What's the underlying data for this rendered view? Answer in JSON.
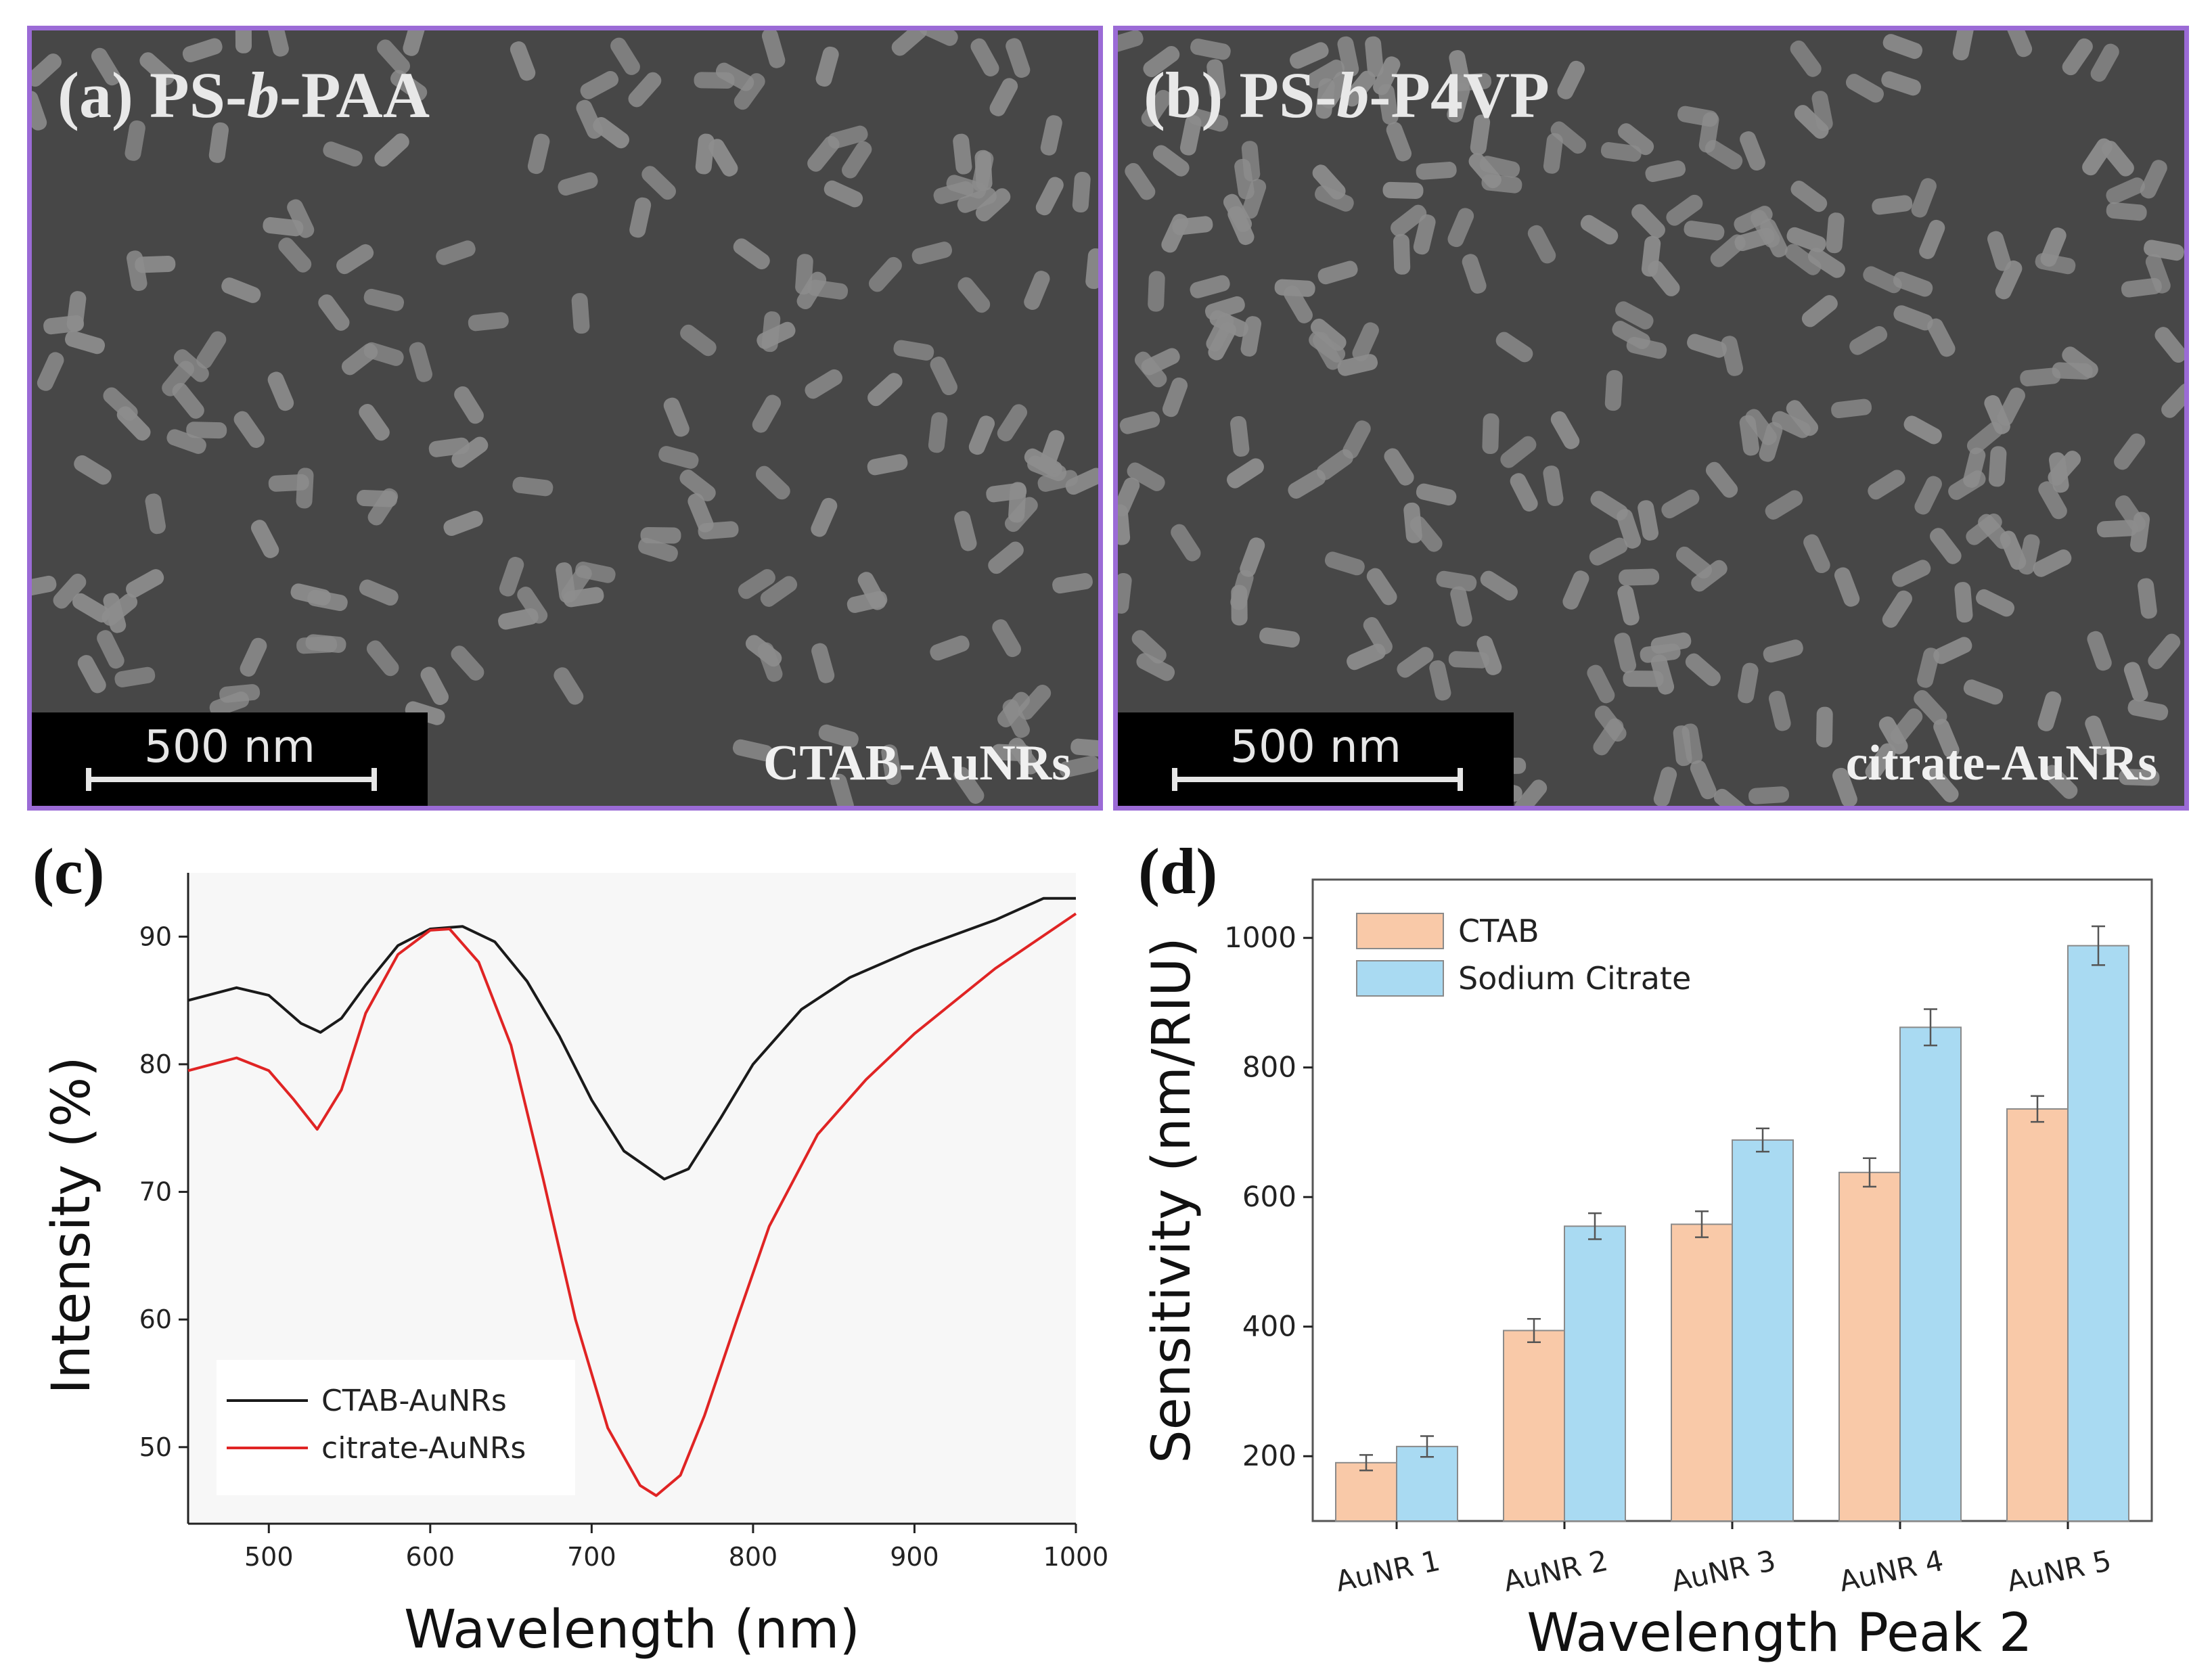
{
  "panels": {
    "a": {
      "title_prefix": "(a) PS-",
      "title_italic": "b",
      "title_suffix": "-PAA",
      "scale_label": "500 nm",
      "label": "CTAB-AuNRs"
    },
    "b": {
      "title_prefix": "(b) PS-",
      "title_italic": "b",
      "title_suffix": "-P4VP",
      "scale_label": "500 nm",
      "label": "citrate-AuNRs"
    },
    "c": {
      "letter": "(c)"
    },
    "d": {
      "letter": "(d)"
    }
  },
  "colors": {
    "ctab_line": "#1a1a1a",
    "citrate_line": "#e02424",
    "ctab_bar": "#f9c9a8",
    "citrate_bar": "#a9daf2",
    "sem_border": "#9b6bd6"
  },
  "chart_data": [
    {
      "type": "line",
      "xlabel": "Wavelength (nm)",
      "ylabel": "Intensity (%)",
      "xlim": [
        450,
        1000
      ],
      "ylim": [
        44,
        95
      ],
      "xticks": [
        500,
        600,
        700,
        800,
        900,
        1000
      ],
      "yticks": [
        50,
        60,
        70,
        80,
        90
      ],
      "legend_position": "bottom-left",
      "series": [
        {
          "name": "CTAB-AuNRs",
          "color": "#1a1a1a",
          "x": [
            450,
            480,
            500,
            520,
            532,
            545,
            560,
            580,
            600,
            620,
            640,
            660,
            680,
            700,
            720,
            745,
            760,
            780,
            800,
            830,
            860,
            900,
            950,
            980,
            1000
          ],
          "y": [
            85,
            86,
            85.4,
            83.2,
            82.5,
            83.6,
            86.2,
            89.3,
            90.6,
            90.8,
            89.6,
            86.5,
            82.2,
            77.2,
            73.2,
            71.0,
            71.8,
            75.8,
            80.0,
            84.3,
            86.8,
            89.0,
            91.3,
            93.0,
            93.0
          ]
        },
        {
          "name": "citrate-AuNRs",
          "color": "#e02424",
          "x": [
            450,
            480,
            500,
            515,
            530,
            545,
            560,
            580,
            600,
            612,
            630,
            650,
            670,
            690,
            710,
            730,
            740,
            755,
            770,
            790,
            810,
            840,
            870,
            900,
            950,
            1000
          ],
          "y": [
            79.5,
            80.5,
            79.5,
            77.3,
            74.9,
            78.0,
            84.0,
            88.6,
            90.5,
            90.6,
            88.0,
            81.5,
            71.0,
            60.0,
            51.5,
            47.0,
            46.2,
            47.8,
            52.5,
            60.0,
            67.3,
            74.5,
            78.8,
            82.4,
            87.5,
            91.8
          ]
        }
      ]
    },
    {
      "type": "bar",
      "xlabel": "Wavelength Peak 2",
      "ylabel": "Sensitivity (nm/RIU)",
      "categories": [
        "AuNR 1",
        "AuNR 2",
        "AuNR 3",
        "AuNR 4",
        "AuNR 5"
      ],
      "ylim": [
        100,
        1090
      ],
      "yticks": [
        200,
        400,
        600,
        800,
        1000
      ],
      "legend_position": "top-left",
      "series": [
        {
          "name": "CTAB",
          "color": "#f9c9a8",
          "values": [
            190,
            394,
            558,
            638,
            736
          ],
          "errors": [
            12,
            18,
            20,
            22,
            20
          ]
        },
        {
          "name": "Sodium Citrate",
          "color": "#a9daf2",
          "values": [
            215,
            555,
            688,
            862,
            988
          ],
          "errors": [
            16,
            20,
            18,
            28,
            30
          ]
        }
      ]
    }
  ]
}
